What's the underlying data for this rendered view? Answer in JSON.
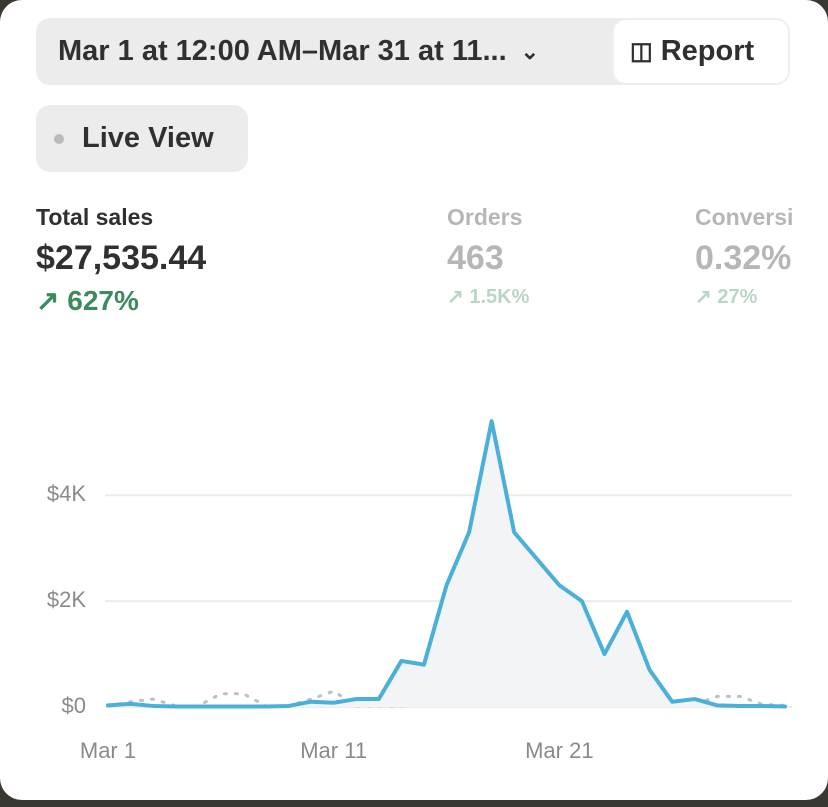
{
  "date_range": "Mar 1 at 12:00 AM–Mar 31 at 11...",
  "report_button": "Report",
  "live_view": "Live View",
  "metrics": [
    {
      "label": "Total sales",
      "value": "$27,535.44",
      "change": "627%"
    },
    {
      "label": "Orders",
      "value": "463",
      "change": "1.5K%"
    },
    {
      "label": "Conversi",
      "value": "0.32%",
      "change": "27%"
    }
  ],
  "chart_data": {
    "type": "line",
    "categories": [
      "Mar 1",
      null,
      null,
      null,
      null,
      null,
      null,
      null,
      null,
      null,
      "Mar 11",
      null,
      null,
      null,
      null,
      null,
      null,
      null,
      null,
      null,
      "Mar 21",
      null,
      null,
      null,
      null,
      null,
      null,
      null,
      null,
      null,
      null
    ],
    "series": [
      {
        "color": "#4ab0d9",
        "style": "solid",
        "values": [
          30,
          60,
          20,
          10,
          10,
          10,
          10,
          10,
          20,
          100,
          80,
          150,
          150,
          870,
          800,
          2300,
          3300,
          5400,
          3300,
          2800,
          2300,
          2000,
          1000,
          1800,
          700,
          100,
          150,
          30,
          20,
          20,
          10
        ]
      },
      {
        "color": "#b7c2c9",
        "style": "dotted",
        "values": [
          20,
          100,
          150,
          20,
          20,
          250,
          250,
          20,
          20,
          150,
          300,
          20,
          20,
          20,
          350,
          250,
          200,
          350,
          150,
          50,
          150,
          100,
          400,
          50,
          150,
          50,
          50,
          200,
          200,
          50,
          30
        ]
      }
    ],
    "ylim": [
      0,
      5800
    ],
    "yticks": [
      {
        "value": 0,
        "label": "$0"
      },
      {
        "value": 2000,
        "label": "$2K"
      },
      {
        "value": 4000,
        "label": "$4K"
      }
    ],
    "grid": true,
    "fill_area": true
  }
}
